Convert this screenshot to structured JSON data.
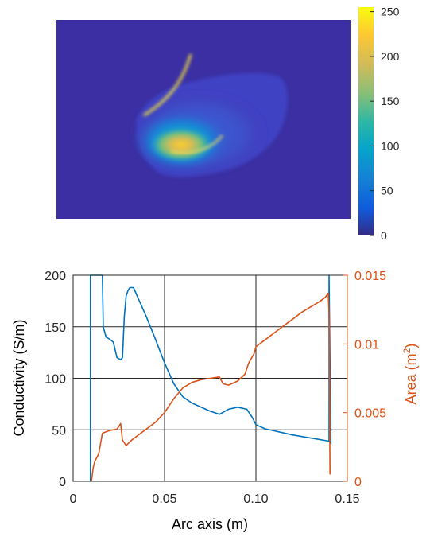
{
  "colors": {
    "background": "#3b2fa3",
    "conductivity_series": "#0072bd",
    "area_series": "#d95319",
    "grid": "#262626"
  },
  "chart_data": [
    {
      "type": "heatmap",
      "title": "",
      "colorbar": {
        "range": [
          0,
          255
        ],
        "ticks": [
          "0",
          "50",
          "100",
          "150",
          "200",
          "250"
        ],
        "colormap": "parula"
      }
    },
    {
      "type": "line",
      "title": "",
      "xlabel": "Arc axis (m)",
      "ylabel_left": "Conductivity (S/m)",
      "ylabel_right_base": "Area (m",
      "ylabel_right_sup": "2",
      "ylabel_right_end": ")",
      "xlim": [
        0,
        0.15
      ],
      "ylim_left": [
        0,
        200
      ],
      "ylim_right": [
        0,
        0.015
      ],
      "grid": true,
      "x_ticks": [
        "0",
        "0.05",
        "0.10",
        "0.15"
      ],
      "y_left_ticks": [
        "0",
        "50",
        "100",
        "150",
        "200"
      ],
      "y_right_ticks": [
        "0",
        "0.005",
        "0.01",
        "0.015"
      ],
      "series": [
        {
          "axis": "left",
          "color": "#0072bd",
          "x": [
            0.0095,
            0.0095,
            0.016,
            0.0165,
            0.018,
            0.02,
            0.022,
            0.024,
            0.026,
            0.027,
            0.028,
            0.029,
            0.03,
            0.031,
            0.033,
            0.035,
            0.04,
            0.045,
            0.05,
            0.055,
            0.06,
            0.065,
            0.07,
            0.075,
            0.08,
            0.085,
            0.09,
            0.095,
            0.098,
            0.1,
            0.105,
            0.11,
            0.12,
            0.13,
            0.14,
            0.14,
            0.141
          ],
          "y": [
            0,
            200,
            200,
            150,
            140,
            138,
            135,
            120,
            118,
            120,
            160,
            180,
            185,
            188,
            188,
            180,
            160,
            138,
            115,
            95,
            82,
            76,
            72,
            68,
            65,
            70,
            72,
            70,
            62,
            55,
            51,
            49,
            45,
            42,
            39,
            200,
            36
          ]
        },
        {
          "axis": "right",
          "color": "#d95319",
          "x": [
            0.01,
            0.011,
            0.012,
            0.014,
            0.016,
            0.018,
            0.02,
            0.024,
            0.026,
            0.027,
            0.029,
            0.032,
            0.035,
            0.04,
            0.045,
            0.05,
            0.055,
            0.06,
            0.065,
            0.07,
            0.075,
            0.08,
            0.082,
            0.085,
            0.09,
            0.094,
            0.096,
            0.099,
            0.1,
            0.105,
            0.11,
            0.115,
            0.12,
            0.125,
            0.13,
            0.135,
            0.138,
            0.1395,
            0.14,
            0.1405
          ],
          "y": [
            0,
            0.001,
            0.0015,
            0.002,
            0.0035,
            0.0036,
            0.0037,
            0.0038,
            0.0042,
            0.003,
            0.0026,
            0.003,
            0.0033,
            0.0038,
            0.0043,
            0.005,
            0.006,
            0.0068,
            0.0072,
            0.0074,
            0.0075,
            0.0076,
            0.0071,
            0.007,
            0.0073,
            0.0078,
            0.0086,
            0.0093,
            0.0098,
            0.0103,
            0.0108,
            0.0113,
            0.0118,
            0.0123,
            0.0127,
            0.0131,
            0.0134,
            0.0137,
            0.0123,
            0.0005
          ]
        }
      ]
    }
  ]
}
